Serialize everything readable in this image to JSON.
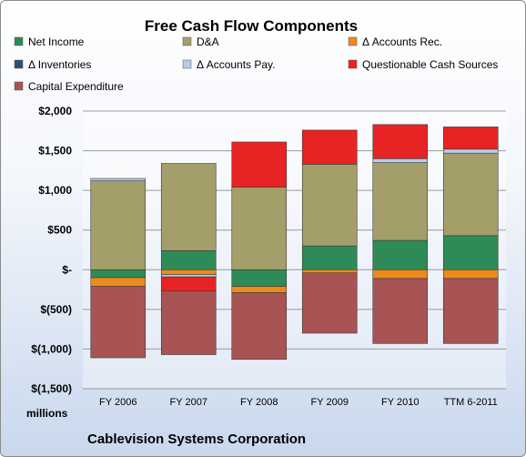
{
  "chart_data": {
    "type": "bar",
    "stacked": true,
    "title": "Free Cash Flow Components",
    "subtitle": "Cablevision Systems Corporation",
    "ylabel": "millions",
    "xlabel": "",
    "ylim": [
      -1500,
      2000
    ],
    "y_ticks": [
      2000,
      1500,
      1000,
      500,
      0,
      -500,
      -1000,
      -1500
    ],
    "y_tick_labels": [
      "$2,000",
      "$1,500",
      "$1,000",
      "$500",
      "$-",
      "$(500)",
      "$(1,000)",
      "$(1,500)"
    ],
    "grid": true,
    "legend_position": "top",
    "categories": [
      "FY 2006",
      "FY 2007",
      "FY 2008",
      "FY 2009",
      "FY 2010",
      "TTM 6-2011"
    ],
    "series": [
      {
        "name": "Net Income",
        "color": "#2e8b57",
        "values": [
          -100,
          240,
          -210,
          300,
          370,
          430
        ]
      },
      {
        "name": "D&A",
        "color": "#a39e6a",
        "values": [
          1120,
          1100,
          1040,
          1030,
          980,
          1040
        ]
      },
      {
        "name": "Δ Accounts Rec.",
        "color": "#ec8a1c",
        "values": [
          -110,
          -60,
          -80,
          -40,
          -110,
          -110
        ]
      },
      {
        "name": "Δ Inventories",
        "color": "#2f4f6f",
        "values": [
          0,
          0,
          0,
          0,
          0,
          0
        ]
      },
      {
        "name": "Δ Accounts Pay.",
        "color": "#b8cde6",
        "values": [
          30,
          -30,
          0,
          0,
          50,
          50
        ]
      },
      {
        "name": "Questionable Cash Sources",
        "color": "#e82323",
        "values": [
          0,
          -180,
          570,
          430,
          430,
          280
        ]
      },
      {
        "name": "Capital Expenditure",
        "color": "#a85454",
        "values": [
          -900,
          -800,
          -840,
          -760,
          -820,
          -820
        ]
      }
    ]
  }
}
